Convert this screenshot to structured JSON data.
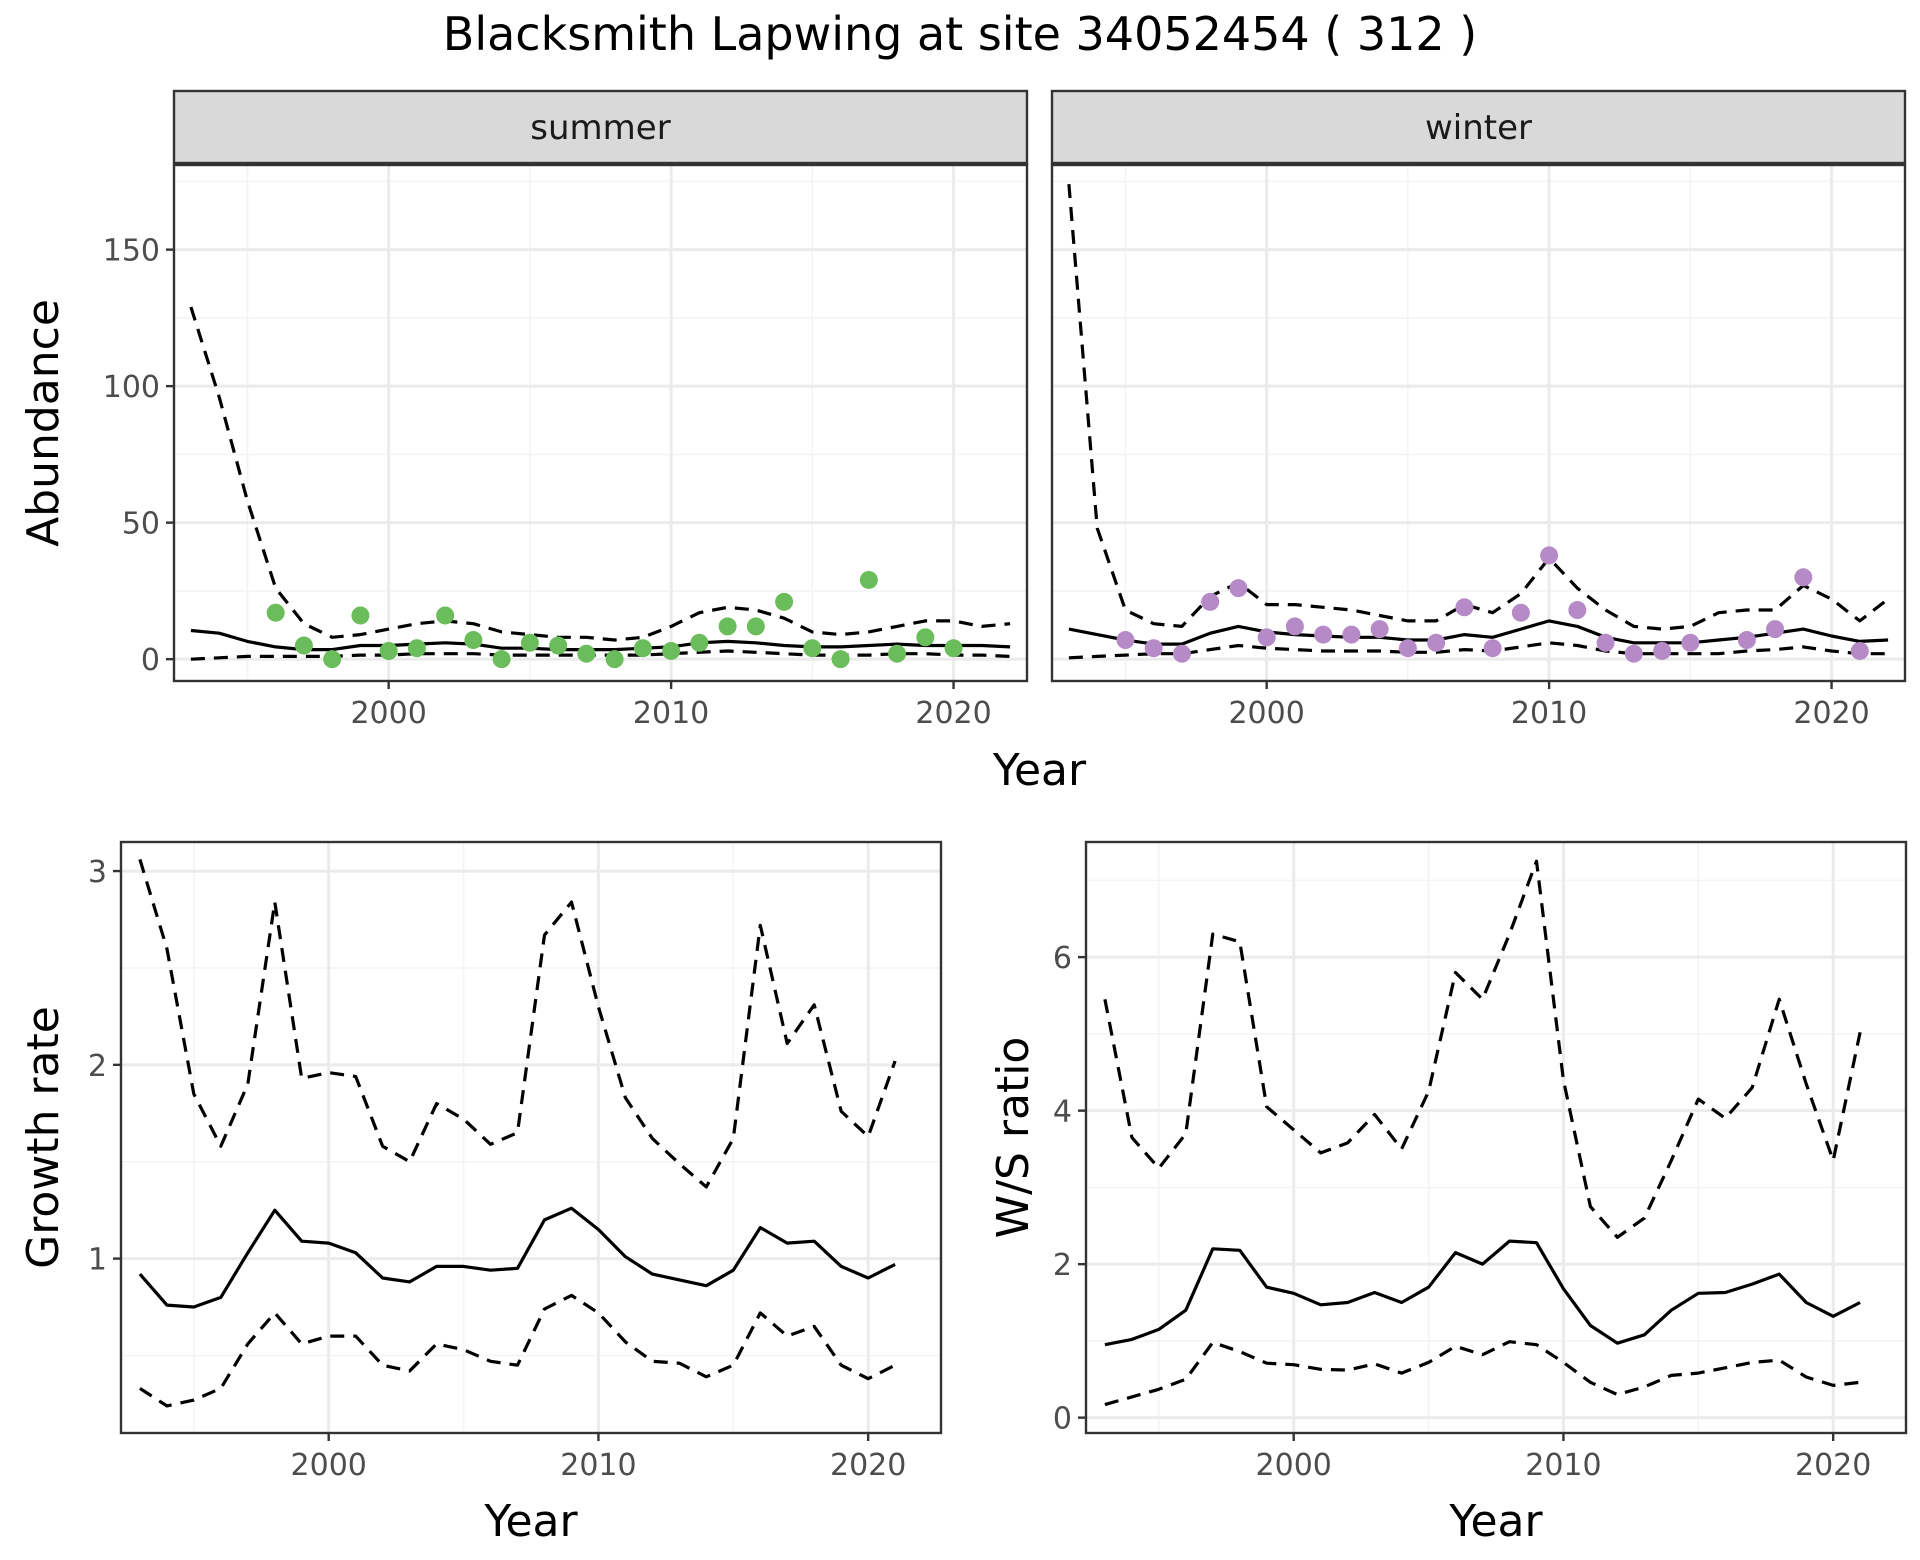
{
  "title": "Blacksmith Lapwing at site 34052454 ( 312 )",
  "colors": {
    "summer_points": "#6abd5a",
    "winter_points": "#b58ac6",
    "strip_fill": "#d9d9d9",
    "line": "#000000"
  },
  "chart_data": [
    {
      "type": "line",
      "panel": "summer",
      "strip_label": "summer",
      "xlabel": "Year",
      "ylabel": "Abundance",
      "xlim": [
        1992.4,
        2022.6
      ],
      "ylim": [
        -8,
        181
      ],
      "x_ticks": [
        2000,
        2010,
        2020
      ],
      "y_ticks": [
        0,
        50,
        100,
        150
      ],
      "grid": true,
      "series": [
        {
          "style": "solid",
          "x": [
            1993,
            1994,
            1995,
            1996,
            1997,
            1998,
            1999,
            2000,
            2001,
            2002,
            2003,
            2004,
            2005,
            2006,
            2007,
            2008,
            2009,
            2010,
            2011,
            2012,
            2013,
            2014,
            2015,
            2016,
            2017,
            2018,
            2019,
            2020,
            2021,
            2022
          ],
          "values": [
            10.5,
            9.5,
            6.5,
            4.5,
            3.5,
            3.5,
            5,
            5,
            5.5,
            6,
            5.5,
            4,
            4,
            3.5,
            3.5,
            3.5,
            4,
            4.5,
            6,
            6.5,
            6,
            5,
            4.5,
            4.5,
            5,
            5.5,
            5,
            5,
            5,
            4.5
          ]
        },
        {
          "style": "dashed",
          "x": [
            1993,
            1994,
            1995,
            1996,
            1997,
            1998,
            1999,
            2000,
            2001,
            2002,
            2003,
            2004,
            2005,
            2006,
            2007,
            2008,
            2009,
            2010,
            2011,
            2012,
            2013,
            2014,
            2015,
            2016,
            2017,
            2018,
            2019,
            2020,
            2021,
            2022
          ],
          "values": [
            129,
            96,
            58,
            26,
            13,
            8,
            9,
            11,
            13,
            14,
            13,
            10,
            9,
            8,
            8,
            7,
            8,
            12,
            17,
            19,
            18,
            15,
            10,
            9,
            10,
            12,
            14,
            14,
            12,
            13
          ]
        },
        {
          "style": "dashed",
          "x": [
            1993,
            1994,
            1995,
            1996,
            1997,
            1998,
            1999,
            2000,
            2001,
            2002,
            2003,
            2004,
            2005,
            2006,
            2007,
            2008,
            2009,
            2010,
            2011,
            2012,
            2013,
            2014,
            2015,
            2016,
            2017,
            2018,
            2019,
            2020,
            2021,
            2022
          ],
          "values": [
            0,
            0.5,
            1,
            1,
            1,
            1,
            1.5,
            1.5,
            2,
            2,
            2,
            1.5,
            1.5,
            1.5,
            1.5,
            1.5,
            1.5,
            2,
            2.5,
            3,
            2.5,
            2,
            1.5,
            1.5,
            1.5,
            2,
            2,
            1.5,
            1.5,
            1
          ]
        }
      ],
      "points": {
        "x": [
          1996,
          1997,
          1998,
          1999,
          2000,
          2001,
          2002,
          2003,
          2004,
          2005,
          2006,
          2007,
          2008,
          2009,
          2010,
          2011,
          2012,
          2013,
          2014,
          2015,
          2016,
          2017,
          2018,
          2019,
          2020
        ],
        "values": [
          17,
          5,
          0,
          16,
          3,
          4,
          16,
          7,
          0,
          6,
          5,
          2,
          0,
          4,
          3,
          6,
          12,
          12,
          21,
          4,
          0,
          29,
          2,
          8,
          4
        ]
      }
    },
    {
      "type": "line",
      "panel": "winter",
      "strip_label": "winter",
      "xlabel": "Year",
      "ylabel": "Abundance",
      "xlim": [
        1992.4,
        2022.6
      ],
      "ylim": [
        -8,
        181
      ],
      "x_ticks": [
        2000,
        2010,
        2020
      ],
      "y_ticks": [
        0,
        50,
        100,
        150
      ],
      "grid": true,
      "series": [
        {
          "style": "solid",
          "x": [
            1993,
            1994,
            1995,
            1996,
            1997,
            1998,
            1999,
            2000,
            2001,
            2002,
            2003,
            2004,
            2005,
            2006,
            2007,
            2008,
            2009,
            2010,
            2011,
            2012,
            2013,
            2014,
            2015,
            2016,
            2017,
            2018,
            2019,
            2020,
            2021,
            2022
          ],
          "values": [
            11,
            9,
            7,
            5.5,
            5.5,
            9.5,
            12,
            10,
            9,
            8.5,
            8,
            8,
            7,
            7,
            9,
            8,
            11,
            14,
            12,
            8,
            6,
            6,
            6,
            7,
            8,
            9.5,
            11,
            8.5,
            6.5,
            7
          ]
        },
        {
          "style": "dashed",
          "x": [
            1993,
            1994,
            1995,
            1996,
            1997,
            1998,
            1999,
            2000,
            2001,
            2002,
            2003,
            2004,
            2005,
            2006,
            2007,
            2008,
            2009,
            2010,
            2011,
            2012,
            2013,
            2014,
            2015,
            2016,
            2017,
            2018,
            2019,
            2020,
            2021,
            2022
          ],
          "values": [
            174,
            48,
            18,
            13,
            12,
            23,
            28,
            20,
            20,
            19,
            18,
            16,
            14,
            14,
            20,
            17,
            24,
            37,
            26,
            18,
            12,
            11,
            12,
            17,
            18,
            18,
            27,
            22,
            14,
            22
          ]
        },
        {
          "style": "dashed",
          "x": [
            1993,
            1994,
            1995,
            1996,
            1997,
            1998,
            1999,
            2000,
            2001,
            2002,
            2003,
            2004,
            2005,
            2006,
            2007,
            2008,
            2009,
            2010,
            2011,
            2012,
            2013,
            2014,
            2015,
            2016,
            2017,
            2018,
            2019,
            2020,
            2021,
            2022
          ],
          "values": [
            0.5,
            1,
            1.5,
            2,
            2,
            3.5,
            5,
            4,
            3.5,
            3,
            3,
            3,
            2.5,
            2.5,
            3.5,
            3,
            4.5,
            6,
            5,
            3,
            2,
            2,
            2,
            2,
            3,
            3.5,
            4.5,
            3,
            2,
            2
          ]
        }
      ],
      "points": {
        "x": [
          1995,
          1996,
          1997,
          1998,
          1999,
          2000,
          2001,
          2002,
          2003,
          2004,
          2005,
          2006,
          2007,
          2008,
          2009,
          2010,
          2011,
          2012,
          2013,
          2014,
          2015,
          2017,
          2018,
          2019,
          2021
        ],
        "values": [
          7,
          4,
          2,
          21,
          26,
          8,
          12,
          9,
          9,
          11,
          4,
          6,
          19,
          4,
          17,
          38,
          18,
          6,
          2,
          3,
          6,
          7,
          11,
          30,
          3
        ]
      }
    },
    {
      "type": "line",
      "panel": "growth",
      "xlabel": "Year",
      "ylabel": "Growth rate",
      "xlim": [
        1992.3,
        2022.7
      ],
      "ylim": [
        0.1,
        3.15
      ],
      "x_ticks": [
        2000,
        2010,
        2020
      ],
      "y_ticks": [
        1,
        2,
        3
      ],
      "grid": true,
      "series": [
        {
          "style": "solid",
          "x": [
            1993,
            1994,
            1995,
            1996,
            1997,
            1998,
            1999,
            2000,
            2001,
            2002,
            2003,
            2004,
            2005,
            2006,
            2007,
            2008,
            2009,
            2010,
            2011,
            2012,
            2013,
            2014,
            2015,
            2016,
            2017,
            2018,
            2019,
            2020,
            2021
          ],
          "values": [
            0.92,
            0.76,
            0.75,
            0.8,
            1.03,
            1.25,
            1.09,
            1.08,
            1.03,
            0.9,
            0.88,
            0.96,
            0.96,
            0.94,
            0.95,
            1.2,
            1.26,
            1.15,
            1.01,
            0.92,
            0.89,
            0.86,
            0.94,
            1.16,
            1.08,
            1.09,
            0.96,
            0.9,
            0.97
          ]
        },
        {
          "style": "dashed",
          "x": [
            1993,
            1994,
            1995,
            1996,
            1997,
            1998,
            1999,
            2000,
            2001,
            2002,
            2003,
            2004,
            2005,
            2006,
            2007,
            2008,
            2009,
            2010,
            2011,
            2012,
            2013,
            2014,
            2015,
            2016,
            2017,
            2018,
            2019,
            2020,
            2021
          ],
          "values": [
            3.06,
            2.6,
            1.85,
            1.58,
            1.9,
            2.84,
            1.93,
            1.96,
            1.94,
            1.58,
            1.5,
            1.8,
            1.72,
            1.59,
            1.65,
            2.67,
            2.84,
            2.3,
            1.83,
            1.62,
            1.49,
            1.37,
            1.62,
            2.72,
            2.11,
            2.31,
            1.76,
            1.63,
            2.02
          ]
        },
        {
          "style": "dashed",
          "x": [
            1993,
            1994,
            1995,
            1996,
            1997,
            1998,
            1999,
            2000,
            2001,
            2002,
            2003,
            2004,
            2005,
            2006,
            2007,
            2008,
            2009,
            2010,
            2011,
            2012,
            2013,
            2014,
            2015,
            2016,
            2017,
            2018,
            2019,
            2020,
            2021
          ],
          "values": [
            0.33,
            0.24,
            0.27,
            0.33,
            0.56,
            0.72,
            0.56,
            0.6,
            0.6,
            0.45,
            0.42,
            0.56,
            0.53,
            0.47,
            0.45,
            0.74,
            0.81,
            0.72,
            0.57,
            0.47,
            0.46,
            0.39,
            0.45,
            0.72,
            0.6,
            0.65,
            0.45,
            0.38,
            0.45
          ]
        }
      ]
    },
    {
      "type": "line",
      "panel": "ratio",
      "xlabel": "Year",
      "ylabel": "W/S ratio",
      "xlim": [
        1992.3,
        2022.7
      ],
      "ylim": [
        -0.2,
        7.5
      ],
      "x_ticks": [
        2000,
        2010,
        2020
      ],
      "y_ticks": [
        0,
        2,
        4,
        6
      ],
      "grid": true,
      "series": [
        {
          "style": "solid",
          "x": [
            1993,
            1994,
            1995,
            1996,
            1997,
            1998,
            1999,
            2000,
            2001,
            2002,
            2003,
            2004,
            2005,
            2006,
            2007,
            2008,
            2009,
            2010,
            2011,
            2012,
            2013,
            2014,
            2015,
            2016,
            2017,
            2018,
            2019,
            2020,
            2021
          ],
          "values": [
            0.95,
            1.02,
            1.15,
            1.4,
            2.2,
            2.18,
            1.7,
            1.62,
            1.47,
            1.5,
            1.63,
            1.5,
            1.7,
            2.15,
            2.0,
            2.3,
            2.28,
            1.68,
            1.2,
            0.97,
            1.08,
            1.4,
            1.62,
            1.63,
            1.74,
            1.87,
            1.5,
            1.32,
            1.5
          ]
        },
        {
          "style": "dashed",
          "x": [
            1993,
            1994,
            1995,
            1996,
            1997,
            1998,
            1999,
            2000,
            2001,
            2002,
            2003,
            2004,
            2005,
            2006,
            2007,
            2008,
            2009,
            2010,
            2011,
            2012,
            2013,
            2014,
            2015,
            2016,
            2017,
            2018,
            2019,
            2020,
            2021
          ],
          "values": [
            5.45,
            3.65,
            3.25,
            3.7,
            6.3,
            6.2,
            4.05,
            3.75,
            3.45,
            3.58,
            3.95,
            3.5,
            4.25,
            5.8,
            5.45,
            6.3,
            7.25,
            4.4,
            2.75,
            2.35,
            2.6,
            3.35,
            4.15,
            3.9,
            4.3,
            5.45,
            4.35,
            3.35,
            5.02
          ]
        },
        {
          "style": "dashed",
          "x": [
            1993,
            1994,
            1995,
            1996,
            1997,
            1998,
            1999,
            2000,
            2001,
            2002,
            2003,
            2004,
            2005,
            2006,
            2007,
            2008,
            2009,
            2010,
            2011,
            2012,
            2013,
            2014,
            2015,
            2016,
            2017,
            2018,
            2019,
            2020,
            2021
          ],
          "values": [
            0.17,
            0.27,
            0.37,
            0.5,
            0.98,
            0.86,
            0.71,
            0.69,
            0.63,
            0.62,
            0.7,
            0.58,
            0.72,
            0.93,
            0.82,
            0.99,
            0.95,
            0.72,
            0.46,
            0.3,
            0.4,
            0.55,
            0.58,
            0.65,
            0.72,
            0.75,
            0.53,
            0.42,
            0.46
          ]
        }
      ]
    }
  ]
}
